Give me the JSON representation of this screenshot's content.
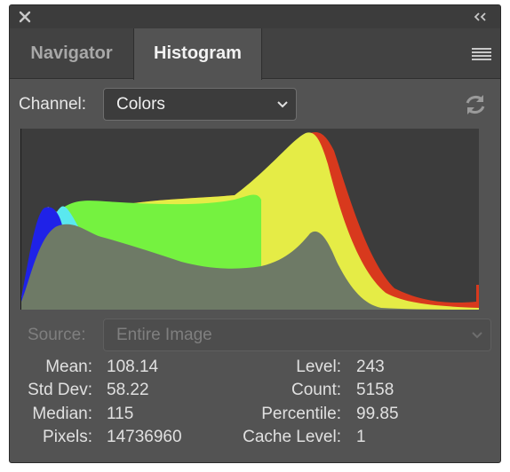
{
  "tabs": {
    "navigator": "Navigator",
    "histogram": "Histogram"
  },
  "channel": {
    "label": "Channel:",
    "value": "Colors"
  },
  "source": {
    "label": "Source:",
    "value": "Entire Image"
  },
  "stats": {
    "mean_label": "Mean:",
    "mean": "108.14",
    "stddev_label": "Std Dev:",
    "stddev": "58.22",
    "median_label": "Median:",
    "median": "115",
    "pixels_label": "Pixels:",
    "pixels": "14736960",
    "level_label": "Level:",
    "level": "243",
    "count_label": "Count:",
    "count": "5158",
    "percentile_label": "Percentile:",
    "percentile": "99.85",
    "cache_label": "Cache Level:",
    "cache": "1"
  },
  "icons": {
    "close": "close-icon",
    "collapse": "double-chevron-left-icon",
    "menu": "hamburger-menu-icon",
    "dropdown": "chevron-down-icon",
    "refresh": "refresh-icon"
  },
  "colors": {
    "red": "#d8391d",
    "yellow": "#e5ec46",
    "green": "#75f240",
    "cyan": "#5ae8ef",
    "blue": "#1f22e8",
    "gray": "#6e7a66",
    "background": "#3c3c3c"
  }
}
